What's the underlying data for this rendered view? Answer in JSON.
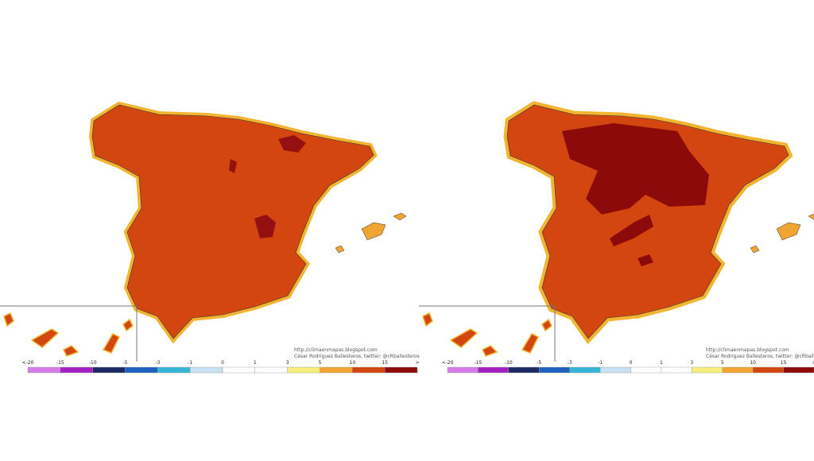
{
  "maps": [
    {
      "credit_url": "http://climaenmapas.blogspot.com",
      "credit_author": "César Rodríguez Ballesteros, twitter: @cRballesteros"
    },
    {
      "credit_url": "http://climaenmapas.blogspot.com",
      "credit_author": "César Rodríguez Ballesteros, twitter: @cRballeste"
    }
  ],
  "legend": {
    "labels": [
      "<-20",
      "-15",
      "-10",
      "-5",
      "-3",
      "-1",
      "0",
      "1",
      "3",
      "5",
      "10",
      "15",
      ">"
    ],
    "colors": [
      "#d77ce6",
      "#a322c4",
      "#1d2b62",
      "#1f60be",
      "#36b6d6",
      "#c6e2f3",
      "#ffffff",
      "#ffffff",
      "#f7ef7c",
      "#f0a431",
      "#d2460f",
      "#8c0a0a"
    ]
  }
}
